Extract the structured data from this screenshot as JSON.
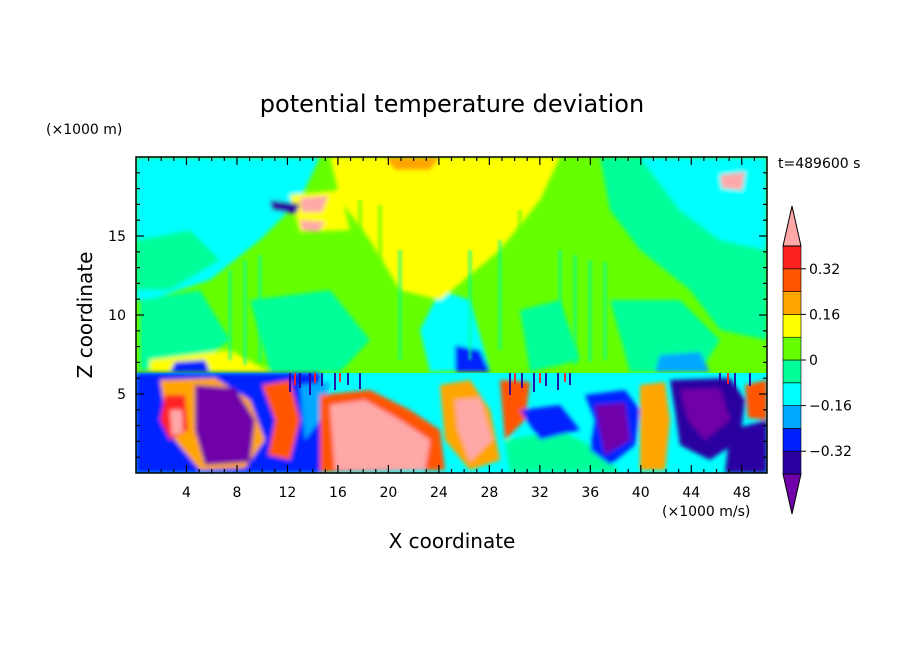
{
  "chart_data": {
    "type": "heatmap",
    "title": "potential temperature deviation",
    "xlabel": "X coordinate",
    "ylabel": "Z coordinate",
    "x_unit": "(×1000 m/s)",
    "y_unit": "(×1000 m)",
    "time_label": "t=489600 s",
    "xlim": [
      0,
      50
    ],
    "ylim": [
      0,
      20
    ],
    "x_ticks": [
      4,
      8,
      12,
      16,
      20,
      24,
      28,
      32,
      36,
      40,
      44,
      48
    ],
    "y_ticks": [
      5,
      10,
      15
    ],
    "colorbar": {
      "levels": [
        -0.4,
        -0.32,
        -0.24,
        -0.16,
        -0.08,
        0,
        0.08,
        0.16,
        0.24,
        0.32,
        0.4
      ],
      "labels": [
        "0.32",
        "0.16",
        "0",
        "−0.16",
        "−0.32"
      ],
      "label_values": [
        0.32,
        0.16,
        0,
        -0.16,
        -0.32
      ],
      "colors": [
        "#7000a8",
        "#2b00a0",
        "#0020ff",
        "#00a8ff",
        "#00ffff",
        "#00ff99",
        "#66ff00",
        "#ffff00",
        "#ffa500",
        "#ff5500",
        "#ff2020",
        "#ffa8a8"
      ]
    }
  }
}
